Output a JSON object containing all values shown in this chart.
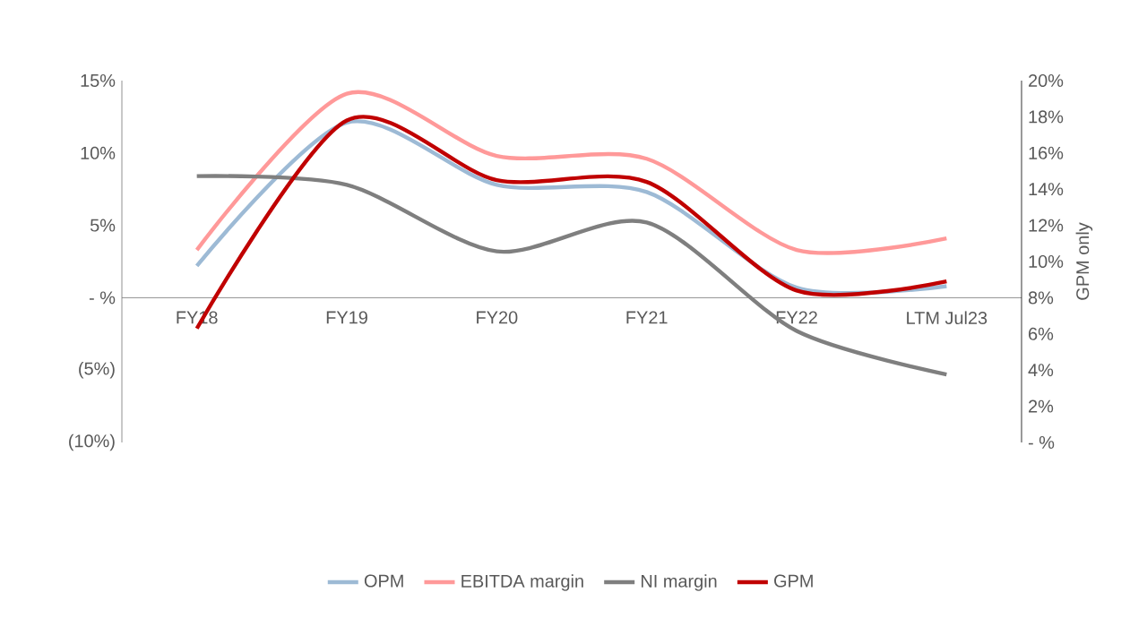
{
  "chart_data": {
    "type": "line",
    "y2label": "GPM only",
    "categories": [
      "FY18",
      "FY19",
      "FY20",
      "FY21",
      "FY22",
      "LTM Jul23"
    ],
    "series": [
      {
        "name": "OPM",
        "color": "#9dbad5",
        "values": [
          2.2,
          12.1,
          7.8,
          7.3,
          0.7,
          0.8
        ]
      },
      {
        "name": "EBITDA margin",
        "color": "#ff9999",
        "values": [
          3.3,
          14.1,
          9.8,
          9.6,
          3.3,
          4.1
        ]
      },
      {
        "name": "NI margin",
        "color": "#7f7f7f",
        "values": [
          8.4,
          7.8,
          3.2,
          5.2,
          -2.3,
          -5.3
        ]
      },
      {
        "name": "GPM",
        "color": "#c00000",
        "axis": "y2",
        "values": [
          6.3,
          17.8,
          14.5,
          14.4,
          8.4,
          8.9
        ]
      }
    ],
    "ylim": [
      -10,
      15
    ],
    "yticks": [
      {
        "value": 15,
        "label": "15%"
      },
      {
        "value": 10,
        "label": "10%"
      },
      {
        "value": 5,
        "label": "5%"
      },
      {
        "value": 0,
        "label": "- %"
      },
      {
        "value": -5,
        "label": "(5%)"
      },
      {
        "value": -10,
        "label": "(10%)"
      }
    ],
    "y2lim": [
      0,
      20
    ],
    "y2ticks": [
      {
        "value": 20,
        "label": "20%"
      },
      {
        "value": 18,
        "label": "18%"
      },
      {
        "value": 16,
        "label": "16%"
      },
      {
        "value": 14,
        "label": "14%"
      },
      {
        "value": 12,
        "label": "12%"
      },
      {
        "value": 10,
        "label": "10%"
      },
      {
        "value": 8,
        "label": "8%"
      },
      {
        "value": 6,
        "label": "6%"
      },
      {
        "value": 4,
        "label": "4%"
      },
      {
        "value": 2,
        "label": "2%"
      },
      {
        "value": 0,
        "label": "- %"
      }
    ],
    "legend": "bottom",
    "grid": false,
    "marker": "none",
    "line_style": "solid"
  }
}
